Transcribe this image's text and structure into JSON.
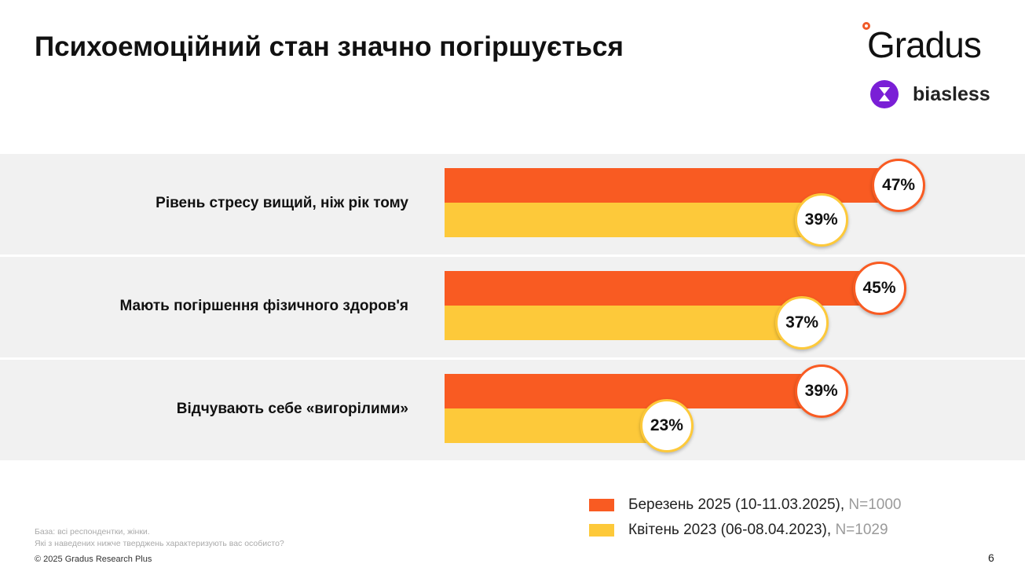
{
  "title": "Психоемоційний стан значно погіршується",
  "logos": {
    "gradus": "Gradus",
    "biasless": "biasless"
  },
  "colors": {
    "march_2025": "#f95b22",
    "april_2023": "#fdc93a"
  },
  "chart_data": {
    "type": "bar",
    "orientation": "horizontal",
    "categories": [
      "Рівень стресу вищий, ніж рік тому",
      "Мають погіршення фізичного здоров'я",
      "Відчувають себе «вигорілими»"
    ],
    "series": [
      {
        "name": "Березень 2025 (10-11.03.2025)",
        "n": "N=1000",
        "values": [
          47,
          45,
          39
        ],
        "labels": [
          "47%",
          "45%",
          "39%"
        ]
      },
      {
        "name": "Квітень 2023 (06-08.04.2023)",
        "n": "N=1029",
        "values": [
          39,
          37,
          23
        ],
        "labels": [
          "39%",
          "37%",
          "23%"
        ]
      }
    ],
    "unit": "%",
    "legend": "bottom-right"
  },
  "footnote": {
    "base": "База: всі респондентки, жінки.",
    "question": "Які з наведених нижче тверджень характеризують вас особисто?"
  },
  "copyright": "© 2025 Gradus Research Plus",
  "page_number": "6"
}
